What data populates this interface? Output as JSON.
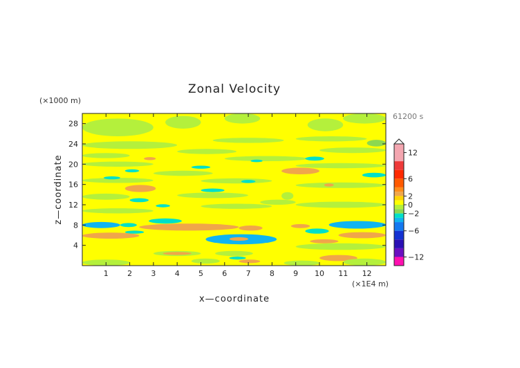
{
  "chart_data": {
    "type": "heatmap",
    "title": "Zonal Velocity",
    "xlabel": "x—coordinate",
    "ylabel": "z—coordinate",
    "x_unit": "(×1E4 m)",
    "y_unit": "(×1000 m)",
    "time_label": "61200 s",
    "xlim": [
      0,
      12.8
    ],
    "ylim": [
      0,
      30
    ],
    "x_ticks": [
      1,
      2,
      3,
      4,
      5,
      6,
      7,
      8,
      9,
      10,
      11,
      12
    ],
    "y_ticks": [
      4,
      8,
      12,
      16,
      20,
      24,
      28
    ],
    "colorbar": {
      "tick_values": [
        12,
        6,
        2,
        0,
        -2,
        -6,
        -12
      ],
      "tick_labels": [
        "12",
        "6",
        "2",
        "0",
        "−2",
        "−6",
        "−12"
      ],
      "levels": [
        {
          "min": 10,
          "max": 14,
          "color": "#f4a6b0"
        },
        {
          "min": 8,
          "max": 10,
          "color": "#ee3a3a"
        },
        {
          "min": 6,
          "max": 8,
          "color": "#ff2a00"
        },
        {
          "min": 4,
          "max": 6,
          "color": "#ff5a00"
        },
        {
          "min": 3,
          "max": 4,
          "color": "#ff8c1a"
        },
        {
          "min": 2,
          "max": 3,
          "color": "#f0a64a"
        },
        {
          "min": 1,
          "max": 2,
          "color": "#ffd400"
        },
        {
          "min": 0,
          "max": 1,
          "color": "#ffff00"
        },
        {
          "min": -1,
          "max": 0,
          "color": "#b4f03c"
        },
        {
          "min": -2,
          "max": -1,
          "color": "#8cd850"
        },
        {
          "min": -3,
          "max": -2,
          "color": "#00e0c8"
        },
        {
          "min": -4,
          "max": -3,
          "color": "#10b4f0"
        },
        {
          "min": -6,
          "max": -4,
          "color": "#1478f0"
        },
        {
          "min": -8,
          "max": -6,
          "color": "#1432d2"
        },
        {
          "min": -10,
          "max": -8,
          "color": "#2a10b4"
        },
        {
          "min": -12,
          "max": -10,
          "color": "#6a10c0"
        },
        {
          "min": -14,
          "max": -12,
          "color": "#ff10b0"
        }
      ]
    },
    "background_value": 0.5,
    "features": [
      {
        "x": [
          0,
          3
        ],
        "z": [
          25.5,
          29
        ],
        "value": -0.5
      },
      {
        "x": [
          3.5,
          5
        ],
        "z": [
          27,
          29.5
        ],
        "value": -0.5
      },
      {
        "x": [
          6,
          7.5
        ],
        "z": [
          28,
          30
        ],
        "value": -0.5
      },
      {
        "x": [
          9.5,
          11
        ],
        "z": [
          26.5,
          29
        ],
        "value": -0.5
      },
      {
        "x": [
          11,
          12.8
        ],
        "z": [
          28,
          30
        ],
        "value": -0.5
      },
      {
        "x": [
          0,
          4
        ],
        "z": [
          23,
          24.5
        ],
        "value": -0.5
      },
      {
        "x": [
          5.5,
          8.5
        ],
        "z": [
          24.2,
          25.2
        ],
        "value": -0.5
      },
      {
        "x": [
          9,
          12
        ],
        "z": [
          24.5,
          25.5
        ],
        "value": -0.5
      },
      {
        "x": [
          0,
          2
        ],
        "z": [
          21.2,
          22.2
        ],
        "value": -0.5
      },
      {
        "x": [
          4,
          6.5
        ],
        "z": [
          22,
          23
        ],
        "value": -0.5
      },
      {
        "x": [
          10,
          12.8
        ],
        "z": [
          22.2,
          23.3
        ],
        "value": -0.5
      },
      {
        "x": [
          12,
          12.8
        ],
        "z": [
          23.5,
          24.8
        ],
        "value": -1.5
      },
      {
        "x": [
          0,
          3
        ],
        "z": [
          19.5,
          20.5
        ],
        "value": -0.5
      },
      {
        "x": [
          6,
          9.5
        ],
        "z": [
          20.6,
          21.6
        ],
        "value": -0.5
      },
      {
        "x": [
          2.6,
          3.1
        ],
        "z": [
          20.8,
          21.4
        ],
        "value": 2.5
      },
      {
        "x": [
          9.4,
          10.2
        ],
        "z": [
          20.7,
          21.5
        ],
        "value": -2.5
      },
      {
        "x": [
          7.1,
          7.6
        ],
        "z": [
          20.4,
          20.9
        ],
        "value": -2.5
      },
      {
        "x": [
          1.8,
          2.4
        ],
        "z": [
          18.4,
          19.0
        ],
        "value": -2.5
      },
      {
        "x": [
          4.6,
          5.4
        ],
        "z": [
          19.1,
          19.7
        ],
        "value": -2.5
      },
      {
        "x": [
          8.4,
          10
        ],
        "z": [
          18.0,
          19.3
        ],
        "value": 2.5
      },
      {
        "x": [
          3,
          5.5
        ],
        "z": [
          17.7,
          18.7
        ],
        "value": -0.5
      },
      {
        "x": [
          9,
          12.8
        ],
        "z": [
          19.2,
          20.2
        ],
        "value": -0.5
      },
      {
        "x": [
          0,
          3
        ],
        "z": [
          16.3,
          17.3
        ],
        "value": -0.5
      },
      {
        "x": [
          0.9,
          1.6
        ],
        "z": [
          17.0,
          17.6
        ],
        "value": -2.5
      },
      {
        "x": [
          5,
          8
        ],
        "z": [
          16.2,
          17.2
        ],
        "value": -0.5
      },
      {
        "x": [
          6.7,
          7.3
        ],
        "z": [
          16.3,
          16.9
        ],
        "value": -2.5
      },
      {
        "x": [
          11.8,
          12.8
        ],
        "z": [
          17.4,
          18.3
        ],
        "value": -2.5
      },
      {
        "x": [
          9,
          12.8
        ],
        "z": [
          15.3,
          16.4
        ],
        "value": -0.5
      },
      {
        "x": [
          1.8,
          3.1
        ],
        "z": [
          14.5,
          15.9
        ],
        "value": 2.5
      },
      {
        "x": [
          5,
          6
        ],
        "z": [
          14.5,
          15.2
        ],
        "value": -2.5
      },
      {
        "x": [
          0,
          2
        ],
        "z": [
          13.0,
          14.2
        ],
        "value": -0.5
      },
      {
        "x": [
          4,
          7
        ],
        "z": [
          13.3,
          14.4
        ],
        "value": -0.5
      },
      {
        "x": [
          2,
          2.8
        ],
        "z": [
          12.5,
          13.3
        ],
        "value": -2.5
      },
      {
        "x": [
          10.2,
          10.6
        ],
        "z": [
          15.6,
          16.2
        ],
        "value": 2.5
      },
      {
        "x": [
          0,
          3
        ],
        "z": [
          10.3,
          11.3
        ],
        "value": -0.5
      },
      {
        "x": [
          3.1,
          3.7
        ],
        "z": [
          11.5,
          12.1
        ],
        "value": -2.5
      },
      {
        "x": [
          5,
          8
        ],
        "z": [
          11.2,
          12.2
        ],
        "value": -0.5
      },
      {
        "x": [
          7.5,
          9
        ],
        "z": [
          12.0,
          13.0
        ],
        "value": -0.5
      },
      {
        "x": [
          9,
          12.8
        ],
        "z": [
          11.4,
          12.6
        ],
        "value": -0.5
      },
      {
        "x": [
          0,
          1.6
        ],
        "z": [
          7.4,
          8.6
        ],
        "value": -3.5
      },
      {
        "x": [
          1.6,
          2.3
        ],
        "z": [
          7.6,
          8.4
        ],
        "value": -2.5
      },
      {
        "x": [
          2.8,
          4.2
        ],
        "z": [
          8.3,
          9.3
        ],
        "value": -2.5
      },
      {
        "x": [
          2.4,
          6.6
        ],
        "z": [
          6.9,
          8.3
        ],
        "value": 2.5
      },
      {
        "x": [
          6.6,
          7.6
        ],
        "z": [
          6.9,
          7.9
        ],
        "value": 2.5
      },
      {
        "x": [
          8.8,
          9.6
        ],
        "z": [
          7.4,
          8.2
        ],
        "value": 2.5
      },
      {
        "x": [
          10.4,
          12.8
        ],
        "z": [
          7.3,
          8.8
        ],
        "value": -3.5
      },
      {
        "x": [
          9.4,
          10.4
        ],
        "z": [
          6.3,
          7.3
        ],
        "value": -2.5
      },
      {
        "x": [
          0,
          2.4
        ],
        "z": [
          5.3,
          6.5
        ],
        "value": 2.5
      },
      {
        "x": [
          1.8,
          2.6
        ],
        "z": [
          6.3,
          6.9
        ],
        "value": -2.5
      },
      {
        "x": [
          5.2,
          8.2
        ],
        "z": [
          4.2,
          6.2
        ],
        "value": -3.5
      },
      {
        "x": [
          6.2,
          7.0
        ],
        "z": [
          4.9,
          5.6
        ],
        "value": 2.5
      },
      {
        "x": [
          10.8,
          12.8
        ],
        "z": [
          5.4,
          6.6
        ],
        "value": 2.5
      },
      {
        "x": [
          9.6,
          10.8
        ],
        "z": [
          4.4,
          5.2
        ],
        "value": 2.5
      },
      {
        "x": [
          9,
          12.8
        ],
        "z": [
          3.1,
          4.4
        ],
        "value": -0.5
      },
      {
        "x": [
          3,
          5
        ],
        "z": [
          1.9,
          2.9
        ],
        "value": -0.5
      },
      {
        "x": [
          3.4,
          4.6
        ],
        "z": [
          2.1,
          2.7
        ],
        "value": 2.5
      },
      {
        "x": [
          5.6,
          7.2
        ],
        "z": [
          1.9,
          2.9
        ],
        "value": -0.5
      },
      {
        "x": [
          4.6,
          5.8
        ],
        "z": [
          0.4,
          1.4
        ],
        "value": -0.5
      },
      {
        "x": [
          6.2,
          6.9
        ],
        "z": [
          1.2,
          1.8
        ],
        "value": -2.5
      },
      {
        "x": [
          6.6,
          7.5
        ],
        "z": [
          0.5,
          1.2
        ],
        "value": 2.5
      },
      {
        "x": [
          10,
          11.6
        ],
        "z": [
          0.9,
          2.1
        ],
        "value": 2.5
      },
      {
        "x": [
          0,
          2
        ],
        "z": [
          0,
          1.2
        ],
        "value": -0.5
      },
      {
        "x": [
          8.5,
          10
        ],
        "z": [
          0,
          1.0
        ],
        "value": -0.5
      },
      {
        "x": [
          11,
          12.8
        ],
        "z": [
          0,
          1.4
        ],
        "value": -0.5
      },
      {
        "x": [
          8.4,
          8.9
        ],
        "z": [
          13.0,
          14.5
        ],
        "value": -0.5
      }
    ]
  }
}
